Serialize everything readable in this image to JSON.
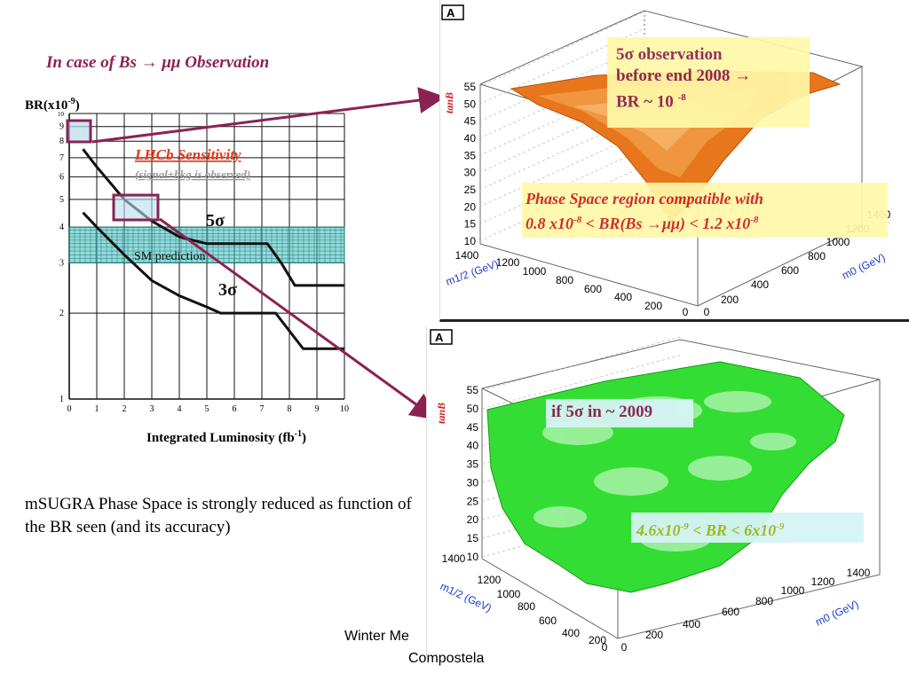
{
  "slide": {
    "title": "In case of Bs → μμ Observation",
    "body_text": "mSUGRA Phase Space is  strongly reduced as function of the BR seen (and its accuracy)",
    "footer_line1": "Winter Me",
    "footer_line2": "Compostela"
  },
  "left_plot": {
    "ylabel_main": "BR(x10",
    "ylabel_exp": "-9",
    "ylabel_end": ")",
    "xlabel_main": "Integrated Luminosity (fb",
    "xlabel_exp": "-1",
    "xlabel_end": ")",
    "sensitivity_title": "LHCb Sensitivity",
    "sensitivity_sub": "(signal+bkg is observed)",
    "sm_label": "SM prediction",
    "label_5sigma": "5σ",
    "label_3sigma": "3σ",
    "x_ticks": [
      "0",
      "1",
      "2",
      "3",
      "4",
      "5",
      "6",
      "7",
      "8",
      "9",
      "10"
    ],
    "y_ticks": [
      {
        "v": 1,
        "t": "1"
      },
      {
        "v": 2,
        "t": "2"
      },
      {
        "v": 3,
        "t": "3"
      },
      {
        "v": 4,
        "t": "4"
      },
      {
        "v": 5,
        "t": "5"
      },
      {
        "v": 6,
        "t": "6"
      },
      {
        "v": 7,
        "t": "7"
      },
      {
        "v": 8,
        "t": "8"
      },
      {
        "v": 9,
        "t": "9"
      },
      {
        "v": 10,
        "t": "10"
      }
    ],
    "sm_band": [
      3.0,
      4.0
    ],
    "curve_5sigma": [
      [
        0.5,
        7.5
      ],
      [
        1,
        6.5
      ],
      [
        2,
        5.0
      ],
      [
        3,
        4.2
      ],
      [
        4,
        3.7
      ],
      [
        5,
        3.5
      ],
      [
        6,
        3.5
      ],
      [
        7.2,
        3.5
      ],
      [
        7.7,
        3.0
      ],
      [
        8.2,
        2.5
      ],
      [
        10,
        2.5
      ]
    ],
    "curve_3sigma": [
      [
        0.5,
        4.5
      ],
      [
        1,
        4.0
      ],
      [
        2,
        3.2
      ],
      [
        3,
        2.6
      ],
      [
        4,
        2.3
      ],
      [
        5,
        2.1
      ],
      [
        5.5,
        2.0
      ],
      [
        7.5,
        2.0
      ],
      [
        8.5,
        1.5
      ],
      [
        10,
        1.5
      ]
    ],
    "colors": {
      "band": "#3fbcbc",
      "curve": "#111111",
      "highlight": "#8B2252",
      "box_fill": "#b8dcec",
      "sensitivity": "#e03a1a"
    }
  },
  "panel_top": {
    "tag": "A",
    "z_label": "tanB",
    "x_label": "m1/2 (GeV)",
    "y_label": "m0 (GeV)",
    "z_ticks": [
      "10",
      "15",
      "20",
      "25",
      "30",
      "35",
      "40",
      "45",
      "50",
      "55"
    ],
    "x_ticks": [
      "1400",
      "1200",
      "1000",
      "800",
      "600",
      "400",
      "200",
      "0"
    ],
    "y_ticks": [
      "0",
      "200",
      "400",
      "600",
      "800",
      "1000",
      "1200",
      "1400"
    ],
    "callout_line1": "5σ observation",
    "callout_line2": "before end 2008 →",
    "callout_line3": "BR ~ 10",
    "callout_exp": "-8",
    "note_line1": "Phase Space region compatible with",
    "note_line2a": "0.8 x10",
    "note_exp1": "-8",
    "note_line2b": " < BR(Bs →μμ) < 1.2 x10",
    "note_exp2": "-8",
    "colors": {
      "surface": "#e8761c",
      "callout_bg": "#fff8a8",
      "callout_text": "#8B2252",
      "note_text": "#cc1d1d"
    }
  },
  "panel_bottom": {
    "tag": "A",
    "z_label": "tanB",
    "x_label": "m1/2 (GeV)",
    "y_label": "m0 (GeV)",
    "z_ticks": [
      "10",
      "15",
      "20",
      "25",
      "30",
      "35",
      "40",
      "45",
      "50",
      "55"
    ],
    "x_ticks": [
      "1400",
      "1200",
      "1000",
      "800",
      "600",
      "400",
      "200",
      "0"
    ],
    "y_ticks": [
      "0",
      "200",
      "400",
      "600",
      "800",
      "1000",
      "1200",
      "1400"
    ],
    "callout": "if 5σ in ~ 2009",
    "note_a": "4.6x10",
    "note_exp1": "-9",
    "note_b": " < BR < 6x10",
    "note_exp2": "-9",
    "colors": {
      "surface": "#33dd33",
      "callout_bg": "#d6f4f4",
      "callout_text": "#8B2252",
      "note_text": "#a2b81c"
    }
  }
}
